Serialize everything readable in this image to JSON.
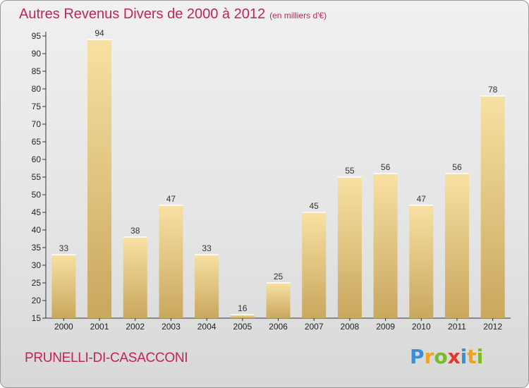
{
  "header": {
    "title": "Autres Revenus Divers de 2000 à 2012",
    "subtitle": "(en milliers d'€)"
  },
  "footer": {
    "commune": "PRUNELLI-DI-CASACCONI",
    "logo_letters": [
      "P",
      "r",
      "o",
      "x",
      "i",
      "t",
      "i"
    ],
    "logo_colors": [
      "#3b8fd8",
      "#f2a21c",
      "#7ab929",
      "#e23a2a",
      "#3b8fd8",
      "#f2a21c",
      "#7ab929"
    ]
  },
  "colors": {
    "bar_light": "#f7e1a2",
    "bar_dark": "#c9a75e",
    "title": "#c0255a"
  },
  "chart_data": {
    "type": "bar",
    "title": "Autres Revenus Divers de 2000 à 2012",
    "subtitle": "(en milliers d'€)",
    "categories": [
      "2000",
      "2001",
      "2002",
      "2003",
      "2004",
      "2005",
      "2006",
      "2007",
      "2008",
      "2009",
      "2010",
      "2011",
      "2012"
    ],
    "values": [
      33,
      94,
      38,
      47,
      33,
      16,
      25,
      45,
      55,
      56,
      47,
      56,
      78
    ],
    "ylim": [
      15,
      95
    ],
    "yticks": [
      15,
      20,
      25,
      30,
      35,
      40,
      45,
      50,
      55,
      60,
      65,
      70,
      75,
      80,
      85,
      90,
      95
    ],
    "grid": false,
    "legend": "none"
  }
}
